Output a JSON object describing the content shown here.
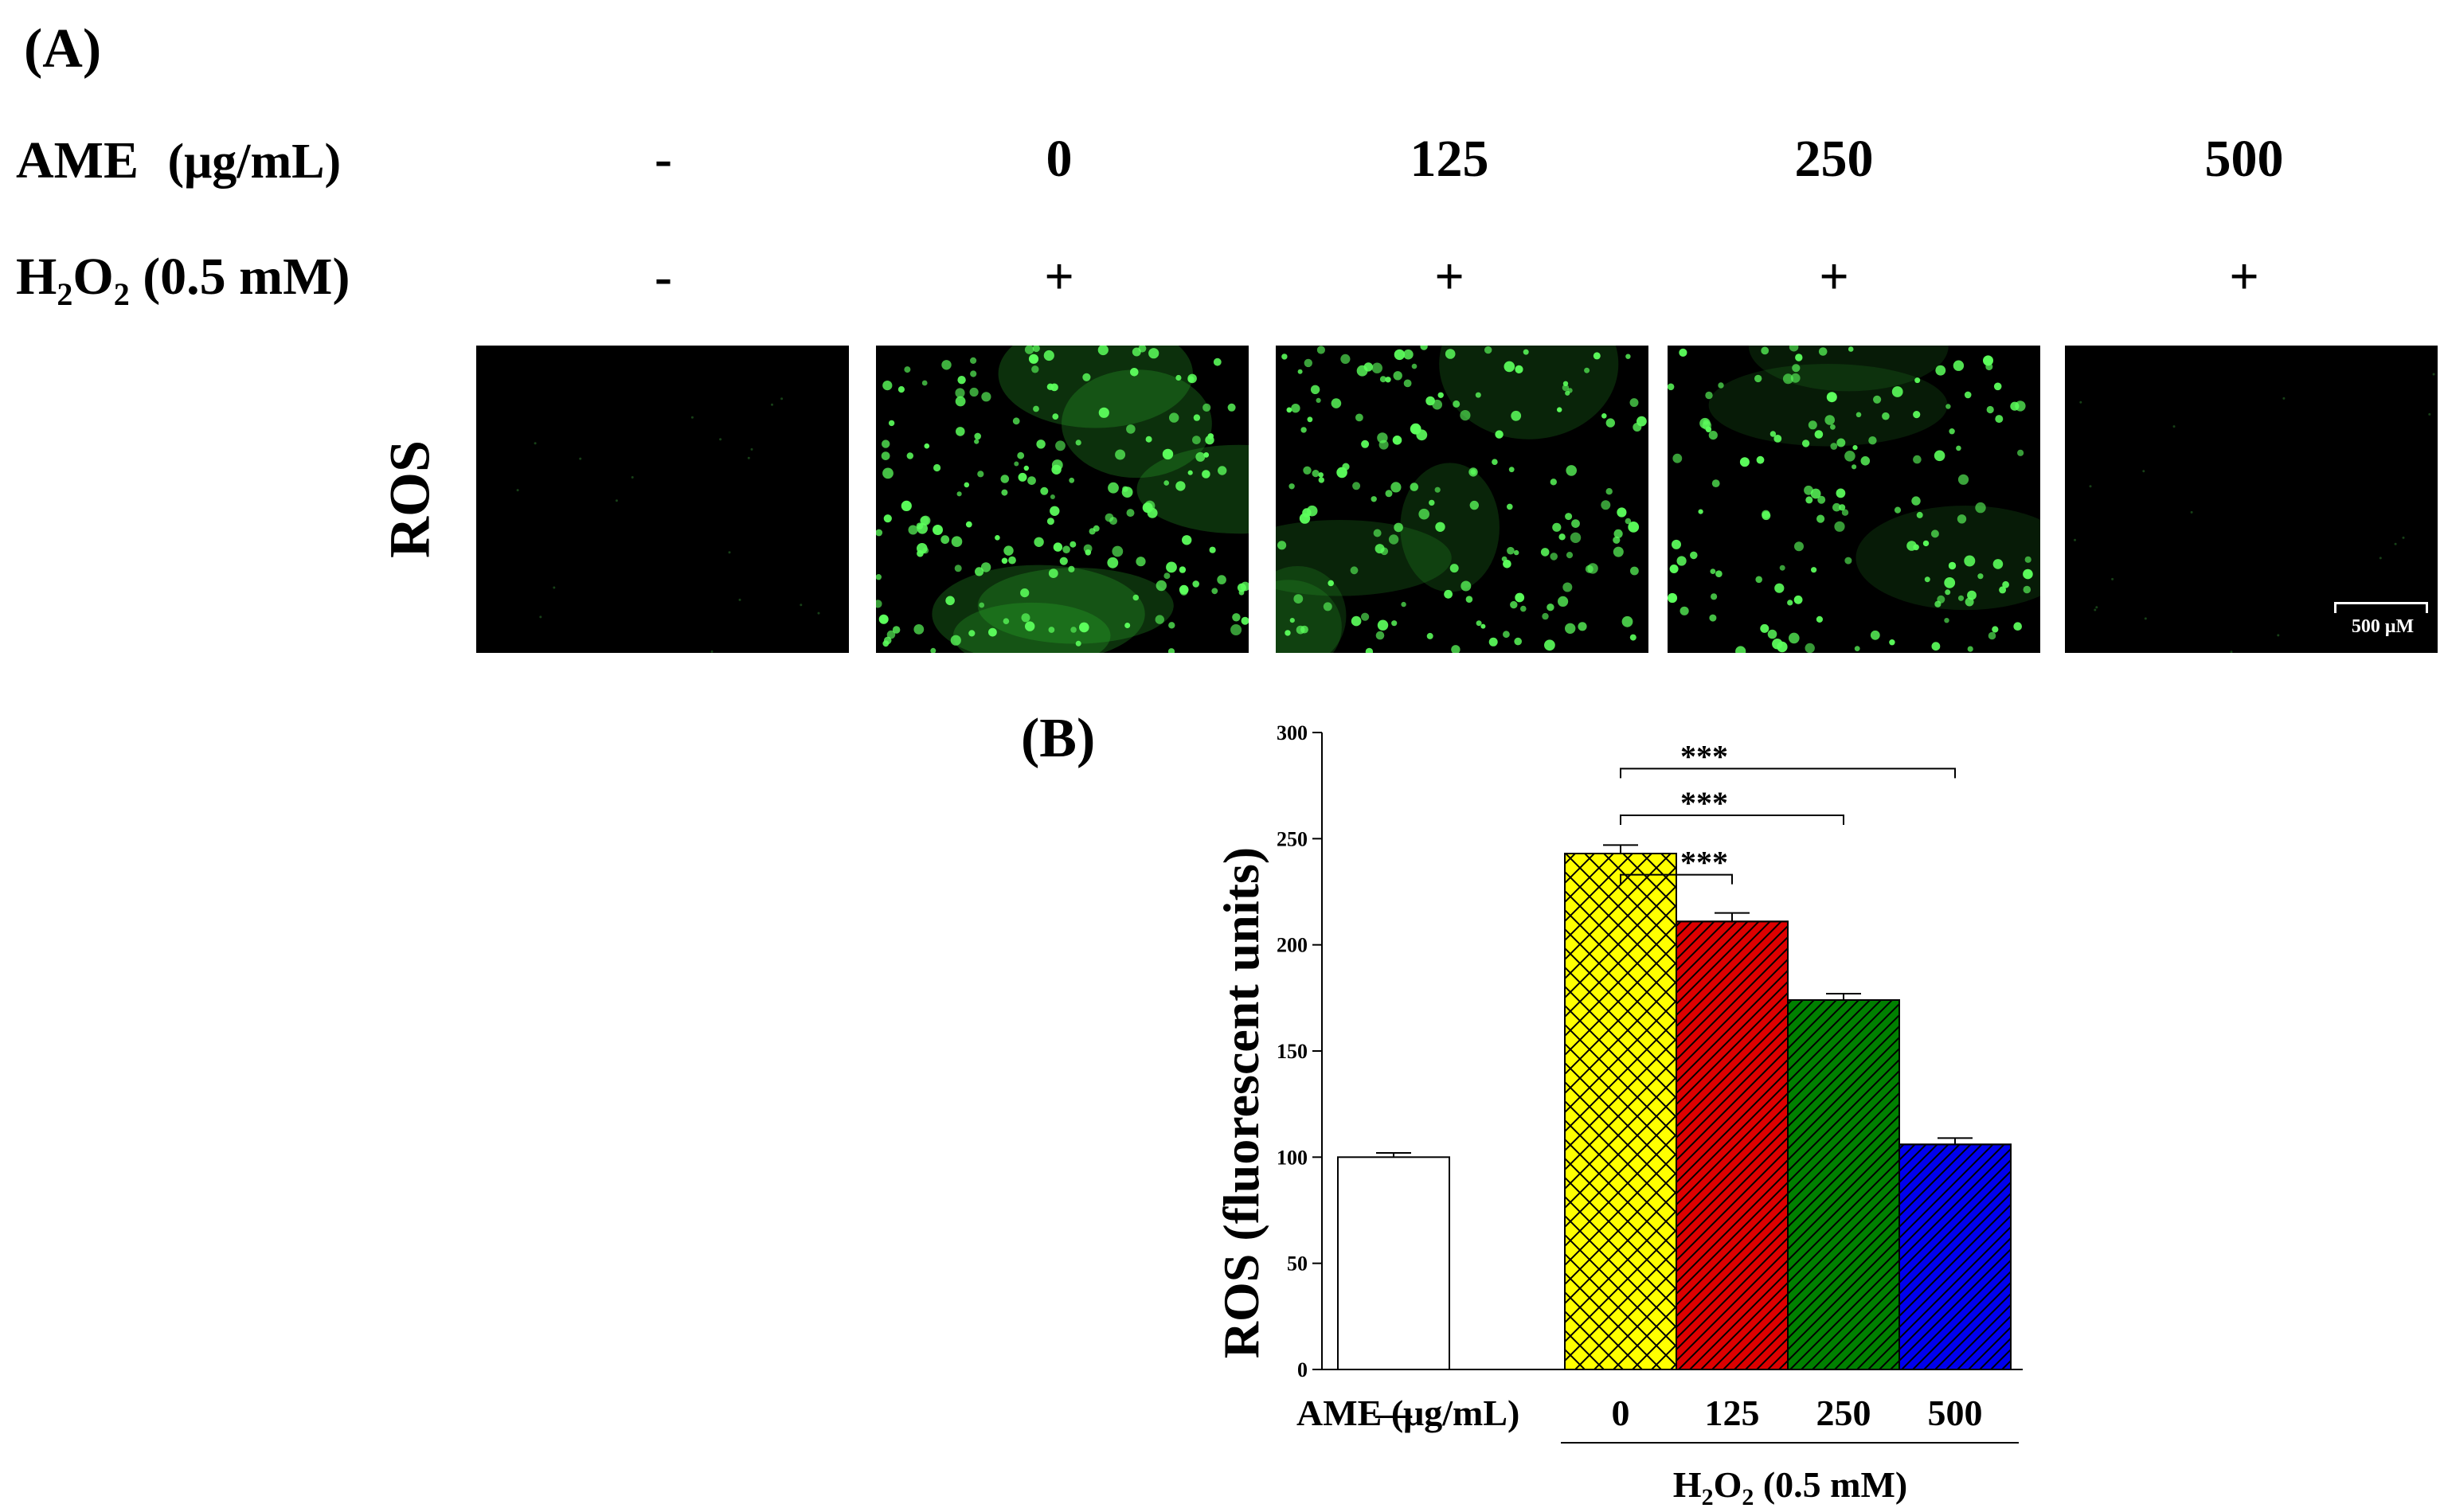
{
  "panel_a": {
    "label": "(A)",
    "ame_label": "AME",
    "ame_unit": "(μg/mL)",
    "h2o2_label_main": "H",
    "h2o2_sub1": "2",
    "h2o2_mid": "O",
    "h2o2_sub2": "2",
    "h2o2_conc": " (0.5 mM)",
    "ame_values": [
      "-",
      "0",
      "125",
      "250",
      "500"
    ],
    "h2o2_values": [
      "-",
      "+",
      "+",
      "+",
      "+"
    ],
    "row_label": "ROS",
    "scale_bar": "500 μM",
    "image_colors": {
      "background": "#000000",
      "cells": "#5cff5c",
      "haze": "#2fbf2f"
    },
    "relative_intensity": [
      0.02,
      1.0,
      0.75,
      0.55,
      0.03
    ]
  },
  "panel_b": {
    "label": "(B)",
    "x_row_label": "AME (μg/mL)",
    "x_group_label_main": "H",
    "x_group_sub1": "2",
    "x_group_mid": "O",
    "x_group_sub2": "2",
    "x_group_conc": " (0.5 mM)"
  },
  "chart_data": {
    "type": "bar",
    "categories": [
      "—",
      "0",
      "125",
      "250",
      "500"
    ],
    "values": [
      100,
      243,
      211,
      174,
      106
    ],
    "errors": [
      2,
      4,
      4,
      3,
      3
    ],
    "colors": [
      "#ffffff",
      "#ffff00",
      "#dd0000",
      "#008000",
      "#0000ee"
    ],
    "patterns": [
      "none",
      "crosshatch",
      "diagonal",
      "diagonal",
      "diagonal"
    ],
    "ylabel": "ROS (fluorescent units)",
    "xlabel": "AME (μg/mL)",
    "ylim": [
      0,
      300
    ],
    "yticks": [
      0,
      50,
      100,
      150,
      200,
      250,
      300
    ],
    "significance": [
      {
        "from": "0",
        "to": "125",
        "label": "***"
      },
      {
        "from": "0",
        "to": "250",
        "label": "***"
      },
      {
        "from": "0",
        "to": "500",
        "label": "***"
      }
    ],
    "grid": false
  }
}
